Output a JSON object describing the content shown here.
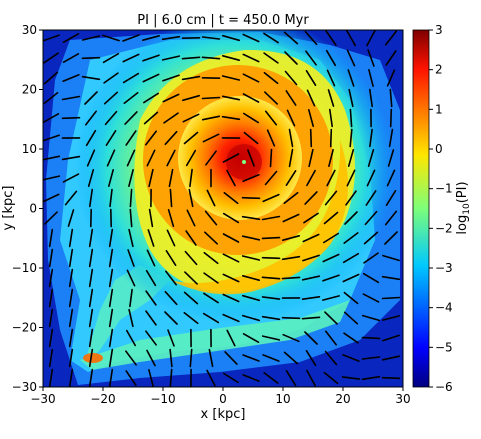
{
  "chart_data": {
    "type": "heatmap",
    "title": "PI | 6.0 cm | t = 450.0 Myr",
    "xlabel": "x [kpc]",
    "ylabel": "y [kpc]",
    "xlim": [
      -30,
      30
    ],
    "ylim": [
      -30,
      30
    ],
    "x_ticks": [
      "−30",
      "−20",
      "−10",
      "0",
      "10",
      "20",
      "30"
    ],
    "x_tick_values": [
      -30,
      -20,
      -10,
      0,
      10,
      20,
      30
    ],
    "y_ticks": [
      "30",
      "20",
      "10",
      "0",
      "−10",
      "−20",
      "−30"
    ],
    "y_tick_values": [
      30,
      20,
      10,
      0,
      -10,
      -20,
      -30
    ],
    "colorbar": {
      "label": "log10(PI)",
      "label_base": "log",
      "label_sub": "10",
      "label_rest": "(PI)",
      "range": [
        -6,
        3
      ],
      "ticks": [
        "3",
        "2",
        "1",
        "0",
        "−1",
        "−2",
        "−3",
        "−4",
        "−5",
        "−6"
      ],
      "tick_values": [
        3,
        2,
        1,
        0,
        -1,
        -2,
        -3,
        -4,
        -5,
        -6
      ],
      "colormap": "jet"
    },
    "center": [
      3,
      7
    ],
    "features": "spiral / spherical galaxy polarized-intensity map with polarization vectors (black segments)",
    "grid": false,
    "legend": "none"
  }
}
